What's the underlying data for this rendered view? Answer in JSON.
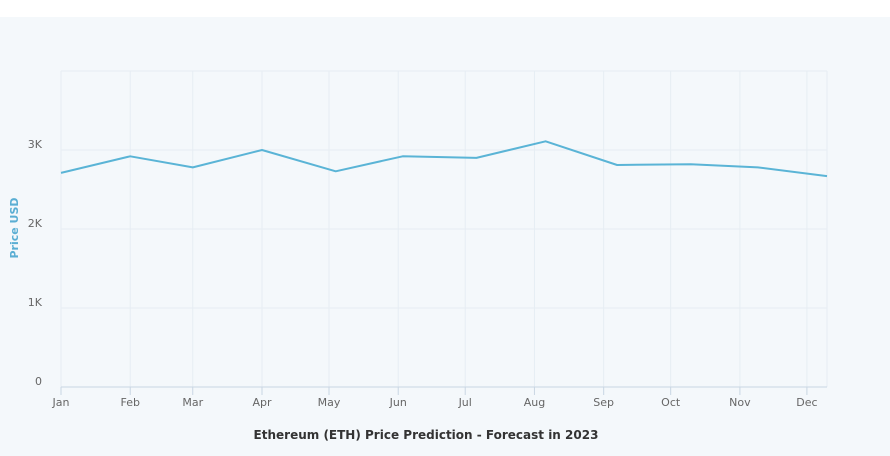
{
  "chart_data": {
    "type": "line",
    "title": "Ethereum (ETH) Price Prediction - Forecast in 2023",
    "xlabel": "",
    "ylabel": "Price USD",
    "x_ticks": [
      "Jan",
      "Feb",
      "Mar",
      "Apr",
      "May",
      "Jun",
      "Jul",
      "Aug",
      "Sep",
      "Oct",
      "Nov",
      "Dec"
    ],
    "y_ticks": [
      "0",
      "1K",
      "2K",
      "3K"
    ],
    "ylim": [
      0,
      4000
    ],
    "xlim": [
      "2023-01-01",
      "2023-12-10"
    ],
    "grid": true,
    "line_color": "#5ab4d6",
    "series": [
      {
        "x": [
          "2023-01-01",
          "2023-02-01",
          "2023-03-01",
          "2023-04-01",
          "2023-05-04",
          "2023-06-03",
          "2023-07-06",
          "2023-08-06",
          "2023-09-07",
          "2023-10-10",
          "2023-11-09",
          "2023-12-10"
        ],
        "values": [
          2710,
          2920,
          2780,
          3000,
          2730,
          2920,
          2900,
          3110,
          2810,
          2820,
          2780,
          2670
        ]
      }
    ]
  }
}
